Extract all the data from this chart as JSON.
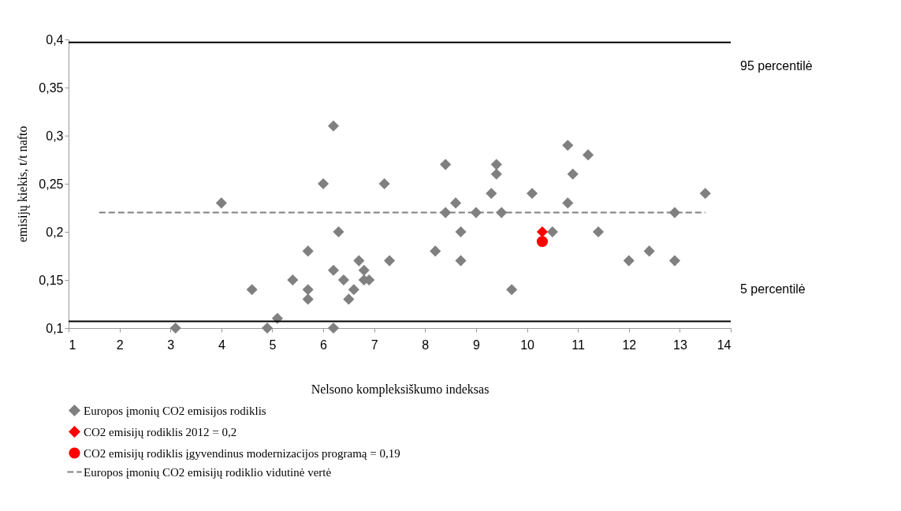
{
  "chart_data": {
    "type": "scatter",
    "xlabel": "Nelsono kompleksiškumo indeksas",
    "ylabel": "emisijų kiekis, t/t nafto",
    "xlim": [
      1,
      14
    ],
    "xticks": [
      1,
      2,
      3,
      4,
      5,
      6,
      7,
      8,
      9,
      10,
      11,
      12,
      13,
      14
    ],
    "ylim": [
      0.1,
      0.4
    ],
    "yticks": [
      {
        "value": 0.1,
        "label": "0,1"
      },
      {
        "value": 0.15,
        "label": "0,15"
      },
      {
        "value": 0.2,
        "label": "0,2"
      },
      {
        "value": 0.25,
        "label": "0,25"
      },
      {
        "value": 0.3,
        "label": "0,3"
      },
      {
        "value": 0.35,
        "label": "0,35"
      },
      {
        "value": 0.4,
        "label": "0,4"
      }
    ],
    "grid": false,
    "legend": "bottom",
    "series": [
      {
        "name": "Europos įmonių CO2 emisijos rodiklis",
        "color": "#808080",
        "marker": "diamond",
        "x": [
          3.1,
          4,
          4.6,
          4.9,
          5.1,
          5.4,
          5.7,
          5.7,
          5.7,
          6.0,
          6.2,
          6.2,
          6.2,
          6.3,
          6.4,
          6.5,
          6.6,
          6.7,
          6.8,
          6.8,
          6.9,
          7.2,
          7.3,
          8.2,
          8.4,
          8.4,
          8.6,
          8.7,
          8.7,
          9.0,
          9.3,
          9.4,
          9.4,
          9.5,
          9.7,
          10.1,
          10.5,
          10.8,
          10.9,
          10.8,
          11.2,
          11.4,
          12.0,
          12.4,
          12.9,
          12.9,
          13.5
        ],
        "values": [
          0.1,
          0.23,
          0.14,
          0.1,
          0.11,
          0.15,
          0.18,
          0.14,
          0.13,
          0.25,
          0.31,
          0.16,
          0.1,
          0.2,
          0.15,
          0.13,
          0.14,
          0.17,
          0.16,
          0.15,
          0.15,
          0.25,
          0.17,
          0.18,
          0.27,
          0.22,
          0.23,
          0.2,
          0.17,
          0.22,
          0.24,
          0.27,
          0.26,
          0.22,
          0.14,
          0.24,
          0.2,
          0.29,
          0.26,
          0.23,
          0.28,
          0.2,
          0.17,
          0.18,
          0.22,
          0.17,
          0.24
        ]
      },
      {
        "name": "CO2 emisijų rodiklis 2012 = 0,2",
        "color": "#ff0000",
        "marker": "diamond",
        "x": [
          10.3
        ],
        "values": [
          0.2
        ]
      },
      {
        "name": "CO2 emisijų rodiklis įgyvendinus modernizacijos programą = 0,19",
        "color": "#ff0000",
        "marker": "circle",
        "x": [
          10.3
        ],
        "values": [
          0.19
        ]
      },
      {
        "name": "Europos įmonių CO2 emisijų rodiklio vidutinė vertė",
        "type": "line",
        "line_style": "dashed",
        "color": "#808080",
        "marker": "none",
        "x": [
          1.6,
          13.5
        ],
        "values": [
          0.22,
          0.22
        ]
      }
    ],
    "ref_lines": [
      {
        "axis": "y",
        "value": 0.397,
        "label": "95 percentilė",
        "color": "#000000"
      },
      {
        "axis": "y",
        "value": 0.107,
        "label": "5 percentilė",
        "color": "#000000"
      }
    ]
  }
}
